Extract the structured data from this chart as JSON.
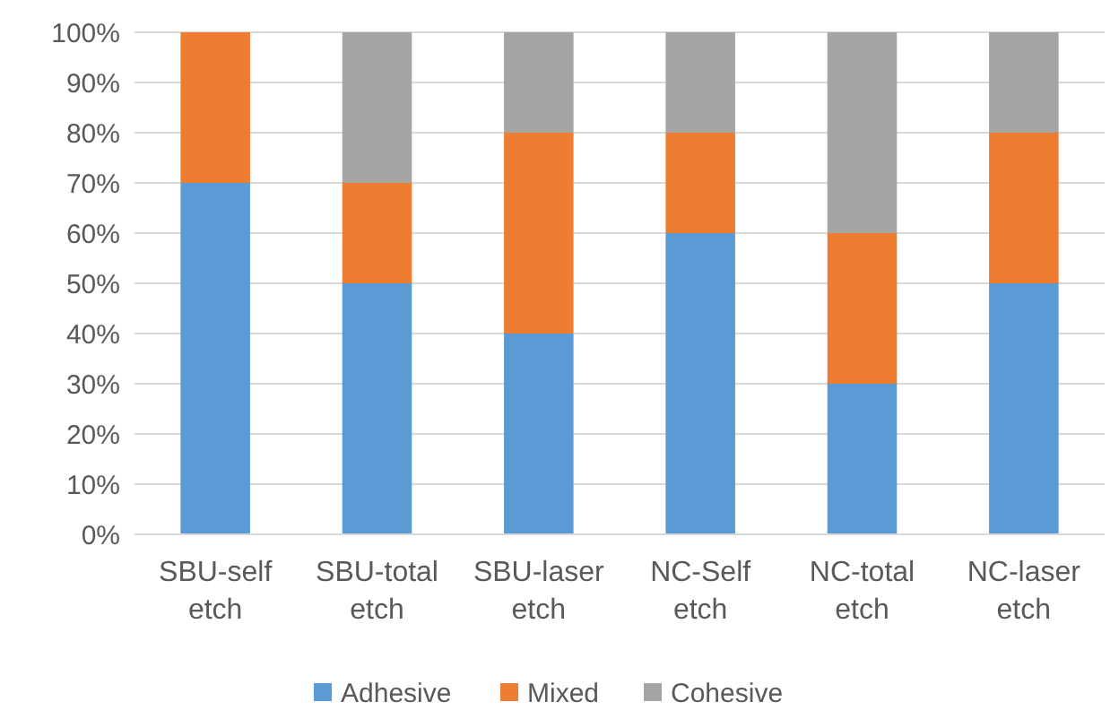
{
  "chart_data": {
    "type": "bar",
    "stacked": true,
    "categories": [
      "SBU-self etch",
      "SBU-total etch",
      "SBU-laser etch",
      "NC-Self etch",
      "NC-total etch",
      "NC-laser etch"
    ],
    "series": [
      {
        "name": "Adhesive",
        "color": "#5b9bd5",
        "values": [
          70,
          50,
          40,
          60,
          30,
          50
        ]
      },
      {
        "name": "Mixed",
        "color": "#ed7d31",
        "values": [
          30,
          20,
          40,
          20,
          30,
          30
        ]
      },
      {
        "name": "Cohesive",
        "color": "#a5a5a5",
        "values": [
          0,
          30,
          20,
          20,
          40,
          20
        ]
      }
    ],
    "ylim": [
      0,
      100
    ],
    "yticks": [
      {
        "value": 0,
        "label": "0%"
      },
      {
        "value": 10,
        "label": "10%"
      },
      {
        "value": 20,
        "label": "20%"
      },
      {
        "value": 30,
        "label": "30%"
      },
      {
        "value": 40,
        "label": "40%"
      },
      {
        "value": 50,
        "label": "50%"
      },
      {
        "value": 60,
        "label": "60%"
      },
      {
        "value": 70,
        "label": "70%"
      },
      {
        "value": 80,
        "label": "80%"
      },
      {
        "value": 90,
        "label": "90%"
      },
      {
        "value": 100,
        "label": "100%"
      }
    ],
    "grid": "y",
    "legend": "bottom"
  }
}
